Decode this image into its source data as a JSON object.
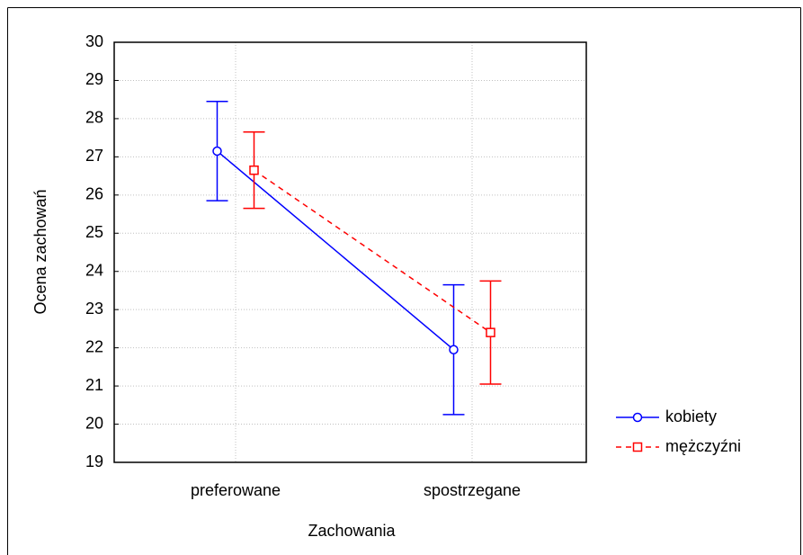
{
  "chart_data": {
    "type": "line",
    "x_label": "Zachowania",
    "y_label": "Ocena zachowań",
    "categories": [
      "preferowane",
      "spostrzegane"
    ],
    "series": [
      {
        "name": "kobiety",
        "color": "#0000ff",
        "marker": "circle",
        "dashed": false,
        "values": [
          27.15,
          21.95
        ],
        "errors": [
          1.3,
          1.7
        ]
      },
      {
        "name": "mężczyźni",
        "color": "#ff0000",
        "marker": "square",
        "dashed": true,
        "values": [
          26.65,
          22.4
        ],
        "errors": [
          1.0,
          1.35
        ]
      }
    ],
    "ylim": [
      19,
      30
    ],
    "yticks": [
      19,
      20,
      21,
      22,
      23,
      24,
      25,
      26,
      27,
      28,
      29,
      30
    ],
    "grid": true,
    "legend": "right"
  }
}
